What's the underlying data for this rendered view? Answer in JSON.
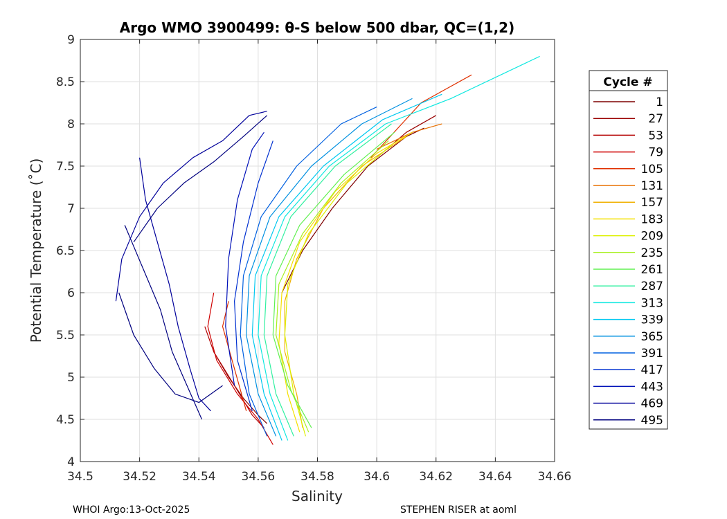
{
  "chart_data": {
    "type": "line",
    "title": "Argo WMO 3900499: θ-S below 500 dbar,  QC=(1,2)",
    "xlabel": "Salinity",
    "ylabel": "Potential Temperature (˚C)",
    "xlim": [
      34.5,
      34.66
    ],
    "ylim": [
      4,
      9
    ],
    "xticks": [
      34.5,
      34.52,
      34.54,
      34.56,
      34.58,
      34.6,
      34.62,
      34.64,
      34.66
    ],
    "xtick_labels": [
      "34.5",
      "34.52",
      "34.54",
      "34.56",
      "34.58",
      "34.6",
      "34.62",
      "34.64",
      "34.66"
    ],
    "yticks": [
      4,
      4.5,
      5,
      5.5,
      6,
      6.5,
      7,
      7.5,
      8,
      8.5,
      9
    ],
    "ytick_labels": [
      "4",
      "4.5",
      "5",
      "5.5",
      "6",
      "6.5",
      "7",
      "7.5",
      "8",
      "8.5",
      "9"
    ],
    "grid": true,
    "legend": {
      "title": "Cycle #",
      "position": "outside-right",
      "entries": [
        {
          "label": "1",
          "color": "#7f0000"
        },
        {
          "label": "27",
          "color": "#9a0000"
        },
        {
          "label": "53",
          "color": "#b40000"
        },
        {
          "label": "79",
          "color": "#cf0000"
        },
        {
          "label": "105",
          "color": "#e03000"
        },
        {
          "label": "131",
          "color": "#e87000"
        },
        {
          "label": "157",
          "color": "#f0b000"
        },
        {
          "label": "183",
          "color": "#f5e000"
        },
        {
          "label": "209",
          "color": "#ddf000"
        },
        {
          "label": "235",
          "color": "#a8f020"
        },
        {
          "label": "261",
          "color": "#60f050"
        },
        {
          "label": "287",
          "color": "#30f0a0"
        },
        {
          "label": "313",
          "color": "#10e8e0"
        },
        {
          "label": "339",
          "color": "#00c8f0"
        },
        {
          "label": "365",
          "color": "#0090e0"
        },
        {
          "label": "391",
          "color": "#0060e0"
        },
        {
          "label": "417",
          "color": "#0030d0"
        },
        {
          "label": "443",
          "color": "#0010b8"
        },
        {
          "label": "469",
          "color": "#00009a"
        },
        {
          "label": "495",
          "color": "#00007f"
        }
      ]
    },
    "series": [
      {
        "name": "1",
        "color": "#7f0000",
        "points": [
          [
            34.545,
            5.3
          ],
          [
            34.55,
            5.0
          ],
          [
            34.555,
            4.75
          ],
          [
            34.56,
            4.55
          ],
          [
            34.563,
            4.45
          ]
        ]
      },
      {
        "name": "1",
        "color": "#7f0000",
        "points": [
          [
            34.568,
            6.0
          ],
          [
            34.575,
            6.5
          ],
          [
            34.585,
            7.0
          ],
          [
            34.597,
            7.5
          ],
          [
            34.61,
            7.85
          ],
          [
            34.616,
            7.95
          ]
        ]
      },
      {
        "name": "27",
        "color": "#9a0000",
        "points": [
          [
            34.6,
            7.6
          ],
          [
            34.61,
            7.9
          ],
          [
            34.62,
            8.1
          ]
        ]
      },
      {
        "name": "53",
        "color": "#b40000",
        "points": [
          [
            34.542,
            5.6
          ],
          [
            34.545,
            5.3
          ],
          [
            34.552,
            4.9
          ],
          [
            34.558,
            4.55
          ],
          [
            34.562,
            4.4
          ]
        ]
      },
      {
        "name": "79",
        "color": "#cf0000",
        "points": [
          [
            34.545,
            6.0
          ],
          [
            34.543,
            5.6
          ],
          [
            34.546,
            5.2
          ],
          [
            34.553,
            4.8
          ],
          [
            34.56,
            4.5
          ],
          [
            34.565,
            4.2
          ]
        ]
      },
      {
        "name": "105",
        "color": "#e03000",
        "points": [
          [
            34.55,
            5.9
          ],
          [
            34.548,
            5.6
          ],
          [
            34.552,
            5.1
          ],
          [
            34.556,
            4.6
          ]
        ]
      },
      {
        "name": "105",
        "color": "#e03000",
        "points": [
          [
            34.598,
            7.6
          ],
          [
            34.615,
            8.25
          ],
          [
            34.632,
            8.58
          ]
        ]
      },
      {
        "name": "131",
        "color": "#e87000",
        "points": [
          [
            34.6,
            7.7
          ],
          [
            34.612,
            7.9
          ],
          [
            34.622,
            8.0
          ]
        ]
      },
      {
        "name": "157",
        "color": "#f0b000",
        "points": [
          [
            34.575,
            4.4
          ],
          [
            34.573,
            4.8
          ],
          [
            34.569,
            5.3
          ],
          [
            34.569,
            5.9
          ],
          [
            34.573,
            6.4
          ],
          [
            34.582,
            7.0
          ],
          [
            34.595,
            7.5
          ],
          [
            34.61,
            7.85
          ]
        ]
      },
      {
        "name": "183",
        "color": "#f5e000",
        "points": [
          [
            34.574,
            4.35
          ],
          [
            34.57,
            4.8
          ],
          [
            34.567,
            5.4
          ],
          [
            34.568,
            6.0
          ],
          [
            34.574,
            6.6
          ],
          [
            34.586,
            7.2
          ],
          [
            34.6,
            7.65
          ],
          [
            34.612,
            7.9
          ]
        ]
      },
      {
        "name": "209",
        "color": "#ddf000",
        "points": [
          [
            34.576,
            4.3
          ],
          [
            34.572,
            4.8
          ],
          [
            34.569,
            5.5
          ],
          [
            34.57,
            6.1
          ],
          [
            34.577,
            6.7
          ],
          [
            34.59,
            7.3
          ],
          [
            34.605,
            7.75
          ]
        ]
      },
      {
        "name": "235",
        "color": "#a8f020",
        "points": [
          [
            34.577,
            4.35
          ],
          [
            34.571,
            4.85
          ],
          [
            34.566,
            5.5
          ],
          [
            34.567,
            6.1
          ],
          [
            34.575,
            6.7
          ],
          [
            34.588,
            7.3
          ],
          [
            34.604,
            7.8
          ]
        ]
      },
      {
        "name": "261",
        "color": "#60f050",
        "points": [
          [
            34.578,
            4.4
          ],
          [
            34.57,
            4.9
          ],
          [
            34.565,
            5.5
          ],
          [
            34.566,
            6.2
          ],
          [
            34.574,
            6.8
          ],
          [
            34.589,
            7.4
          ],
          [
            34.606,
            7.9
          ]
        ]
      },
      {
        "name": "287",
        "color": "#30f0a0",
        "points": [
          [
            34.572,
            4.3
          ],
          [
            34.566,
            4.8
          ],
          [
            34.562,
            5.5
          ],
          [
            34.563,
            6.2
          ],
          [
            34.571,
            6.9
          ],
          [
            34.586,
            7.5
          ],
          [
            34.605,
            8.0
          ]
        ]
      },
      {
        "name": "313",
        "color": "#10e8e0",
        "points": [
          [
            34.57,
            4.25
          ],
          [
            34.564,
            4.8
          ],
          [
            34.56,
            5.5
          ],
          [
            34.561,
            6.2
          ],
          [
            34.569,
            6.9
          ],
          [
            34.584,
            7.5
          ],
          [
            34.603,
            8.0
          ],
          [
            34.625,
            8.3
          ],
          [
            34.655,
            8.8
          ]
        ]
      },
      {
        "name": "339",
        "color": "#00c8f0",
        "points": [
          [
            34.568,
            4.25
          ],
          [
            34.562,
            4.8
          ],
          [
            34.558,
            5.5
          ],
          [
            34.559,
            6.2
          ],
          [
            34.567,
            6.9
          ],
          [
            34.582,
            7.5
          ],
          [
            34.602,
            8.05
          ],
          [
            34.622,
            8.35
          ]
        ]
      },
      {
        "name": "365",
        "color": "#0090e0",
        "points": [
          [
            34.566,
            4.3
          ],
          [
            34.56,
            4.8
          ],
          [
            34.556,
            5.5
          ],
          [
            34.557,
            6.2
          ],
          [
            34.564,
            6.9
          ],
          [
            34.578,
            7.5
          ],
          [
            34.595,
            8.0
          ],
          [
            34.612,
            8.3
          ]
        ]
      },
      {
        "name": "391",
        "color": "#0060e0",
        "points": [
          [
            34.563,
            4.3
          ],
          [
            34.557,
            4.8
          ],
          [
            34.554,
            5.5
          ],
          [
            34.555,
            6.2
          ],
          [
            34.561,
            6.9
          ],
          [
            34.573,
            7.5
          ],
          [
            34.588,
            8.0
          ],
          [
            34.6,
            8.2
          ]
        ]
      },
      {
        "name": "417",
        "color": "#0030d0",
        "points": [
          [
            34.558,
            4.6
          ],
          [
            34.553,
            5.2
          ],
          [
            34.552,
            5.9
          ],
          [
            34.555,
            6.6
          ],
          [
            34.56,
            7.3
          ],
          [
            34.565,
            7.8
          ]
        ]
      },
      {
        "name": "443",
        "color": "#0010b8",
        "points": [
          [
            34.552,
            4.9
          ],
          [
            34.549,
            5.6
          ],
          [
            34.55,
            6.4
          ],
          [
            34.553,
            7.1
          ],
          [
            34.558,
            7.7
          ],
          [
            34.562,
            7.9
          ]
        ]
      },
      {
        "name": "469",
        "color": "#00009a",
        "points": [
          [
            34.512,
            5.9
          ],
          [
            34.514,
            6.4
          ],
          [
            34.52,
            6.9
          ],
          [
            34.528,
            7.3
          ],
          [
            34.538,
            7.6
          ],
          [
            34.548,
            7.8
          ],
          [
            34.557,
            8.1
          ],
          [
            34.563,
            8.15
          ]
        ]
      },
      {
        "name": "469",
        "color": "#00009a",
        "points": [
          [
            34.52,
            7.6
          ],
          [
            34.522,
            7.1
          ],
          [
            34.526,
            6.6
          ],
          [
            34.53,
            6.1
          ],
          [
            34.533,
            5.6
          ],
          [
            34.537,
            5.1
          ],
          [
            34.54,
            4.75
          ],
          [
            34.544,
            4.6
          ]
        ]
      },
      {
        "name": "495",
        "color": "#00007f",
        "points": [
          [
            34.515,
            6.8
          ],
          [
            34.521,
            6.3
          ],
          [
            34.527,
            5.8
          ],
          [
            34.531,
            5.3
          ],
          [
            34.536,
            4.9
          ],
          [
            34.541,
            4.5
          ]
        ]
      },
      {
        "name": "495",
        "color": "#00007f",
        "points": [
          [
            34.513,
            6.0
          ],
          [
            34.518,
            5.5
          ],
          [
            34.525,
            5.1
          ],
          [
            34.532,
            4.8
          ],
          [
            34.54,
            4.7
          ],
          [
            34.548,
            4.9
          ]
        ]
      },
      {
        "name": "495",
        "color": "#00007f",
        "points": [
          [
            34.518,
            6.6
          ],
          [
            34.526,
            7.0
          ],
          [
            34.535,
            7.3
          ],
          [
            34.545,
            7.55
          ],
          [
            34.555,
            7.85
          ],
          [
            34.563,
            8.1
          ]
        ]
      }
    ]
  },
  "footer": {
    "left": "WHOI Argo:13-Oct-2025",
    "right": "STEPHEN RISER at aoml"
  }
}
